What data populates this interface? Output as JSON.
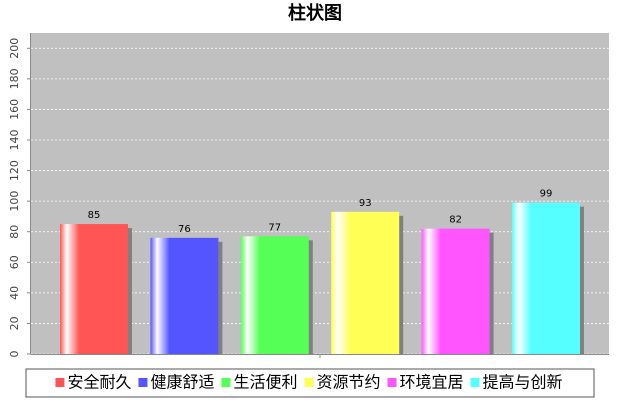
{
  "chart_data": {
    "type": "bar",
    "title": "柱状图",
    "categories": [
      null
    ],
    "series": [
      {
        "name": "安全耐久",
        "color": "#ff5555",
        "values": [
          85
        ]
      },
      {
        "name": "健康舒适",
        "color": "#5555ff",
        "values": [
          76
        ]
      },
      {
        "name": "生活便利",
        "color": "#55ff55",
        "values": [
          77
        ]
      },
      {
        "name": "资源节约",
        "color": "#ffff55",
        "values": [
          93
        ]
      },
      {
        "name": "环境宜居",
        "color": "#ff55ff",
        "values": [
          82
        ]
      },
      {
        "name": "提高与创新",
        "color": "#55ffff",
        "values": [
          99
        ]
      }
    ],
    "ylim": [
      0,
      210
    ],
    "yticks": [
      0,
      20,
      40,
      60,
      80,
      100,
      120,
      140,
      160,
      180,
      200
    ],
    "grid": true,
    "legend": "bottom"
  }
}
